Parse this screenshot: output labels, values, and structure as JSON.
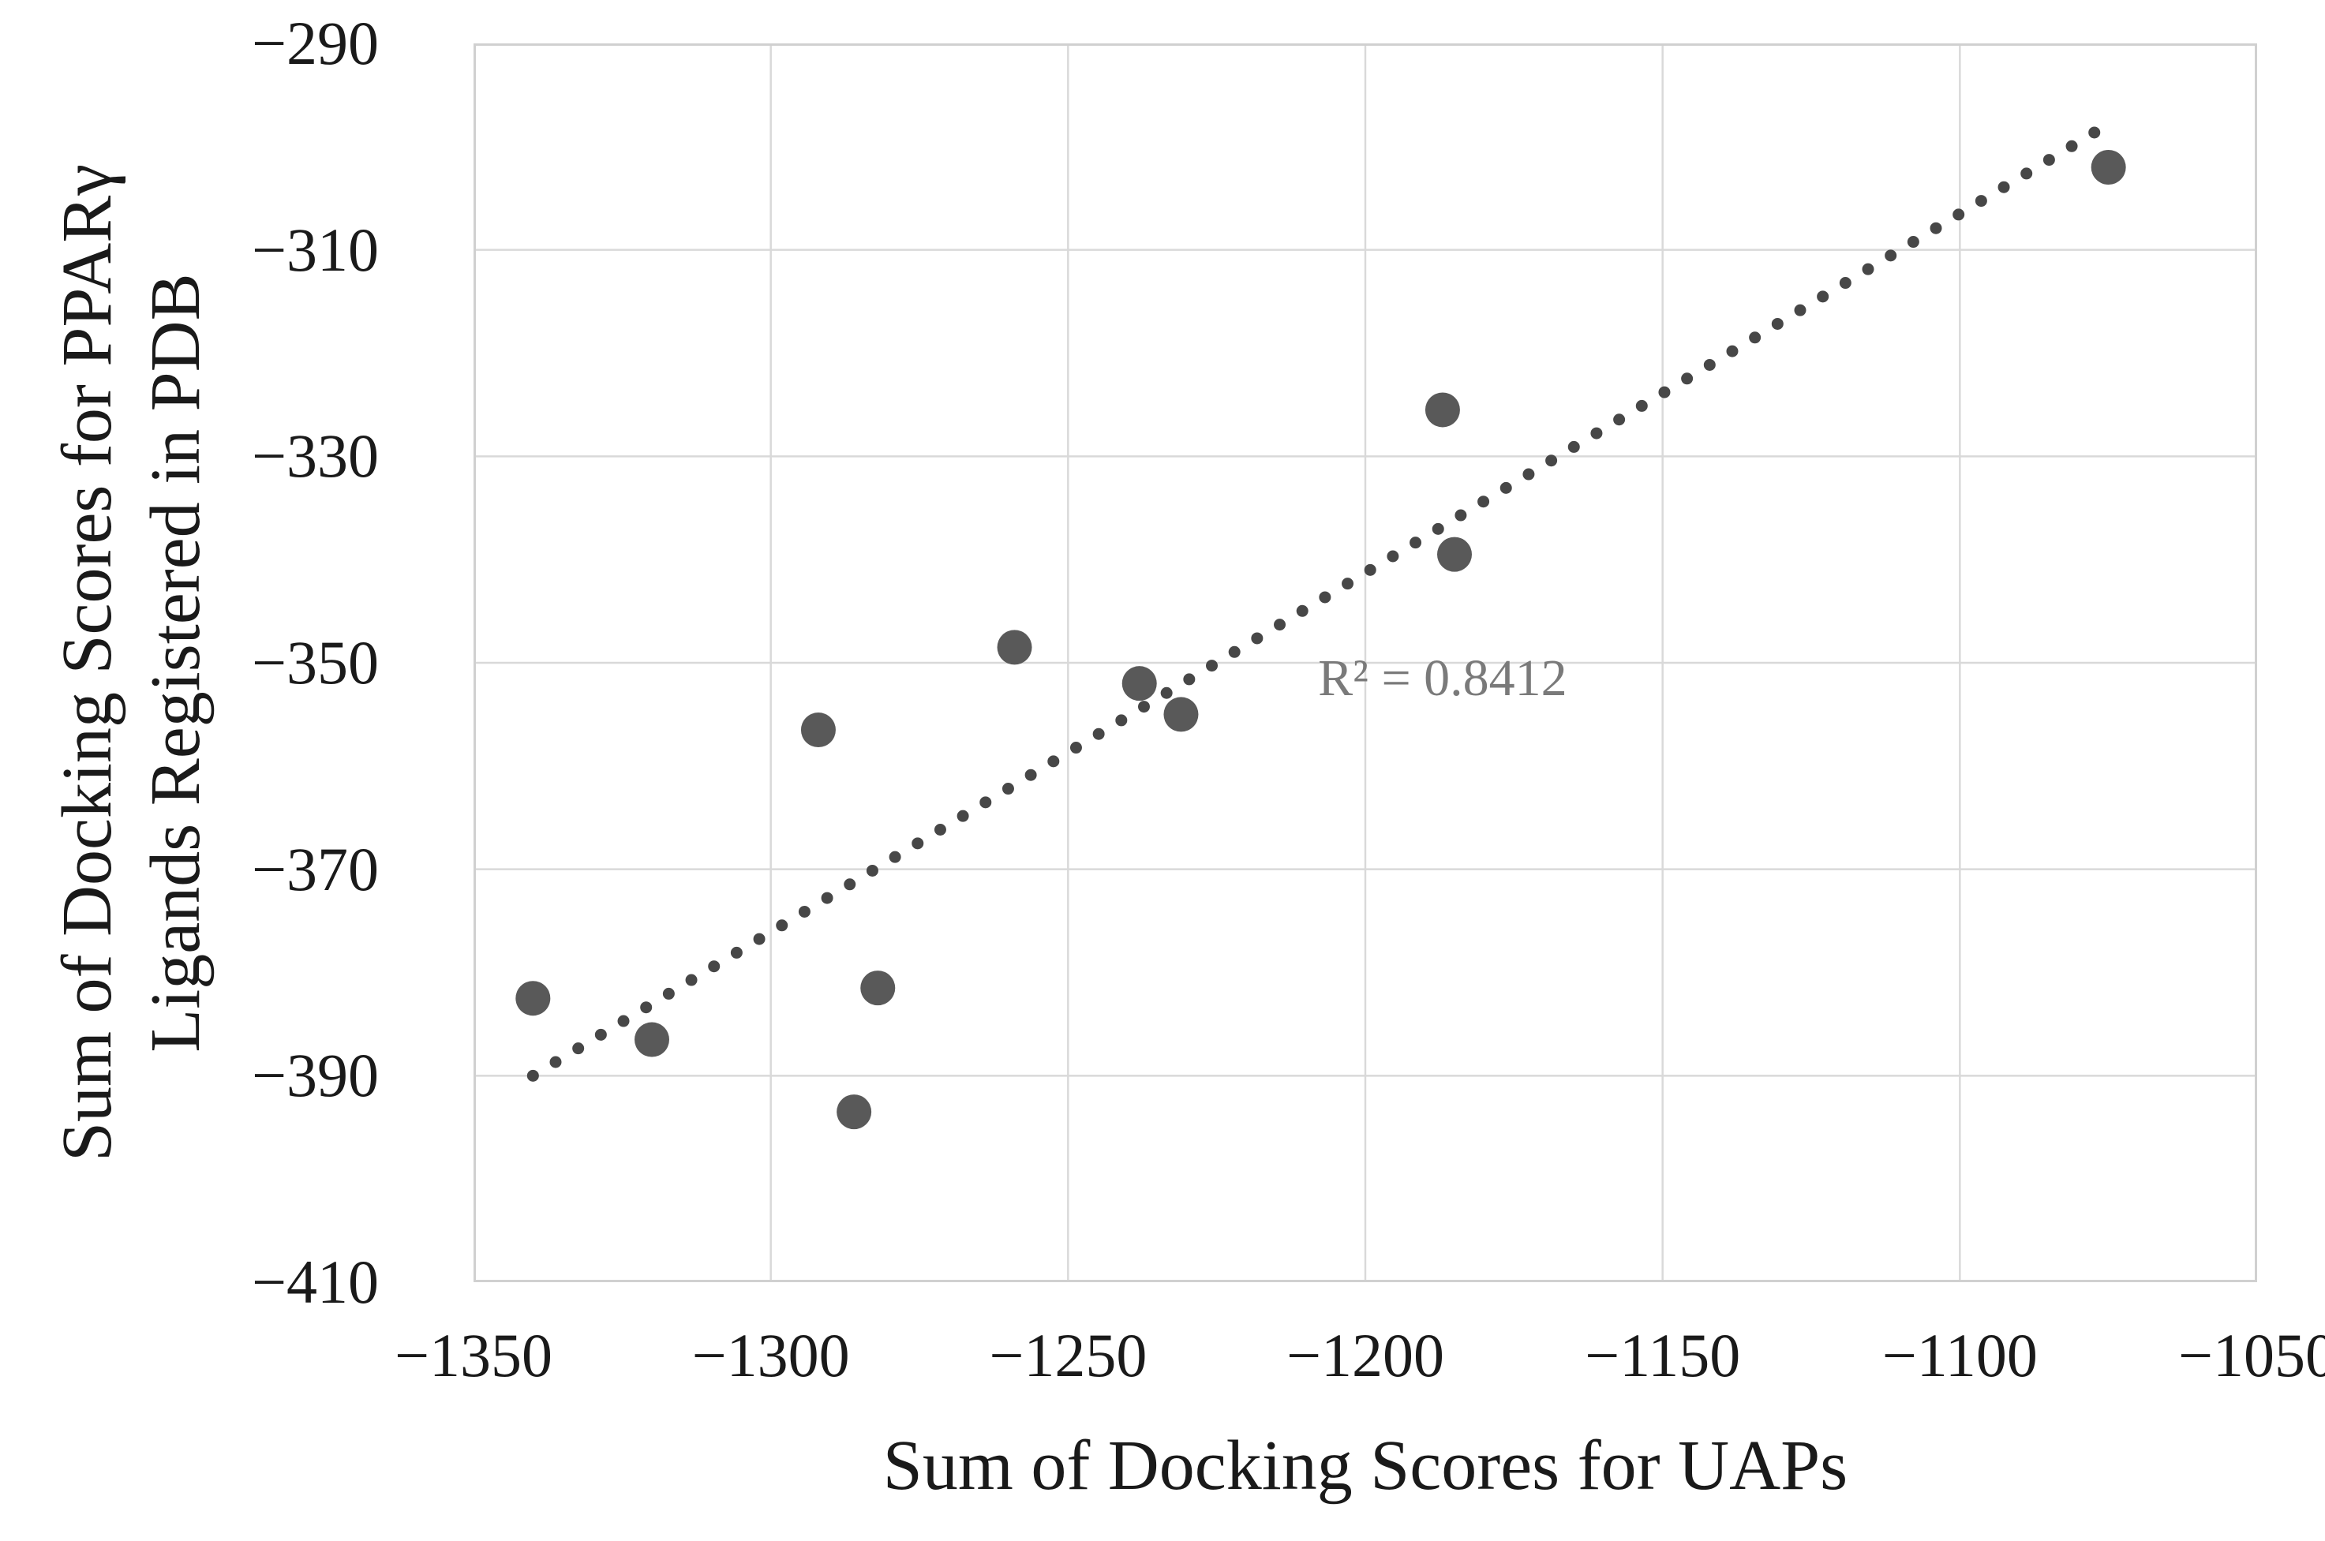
{
  "figure": {
    "background": "#ffffff",
    "text_color": "#1a1a1a"
  },
  "chart_data": {
    "type": "scatter",
    "title": "",
    "xlabel": "Sum of Docking Scores for UAPs",
    "ylabel_line1": "Sum of Docking Scores for PPARγ",
    "ylabel_line2": "Ligands Registered in PDB",
    "xlim": [
      -1350,
      -1050
    ],
    "ylim": [
      -410,
      -290
    ],
    "grid": true,
    "legend_position": "none",
    "grid_color": "#d9d9d9",
    "border_color": "#d0d0d0",
    "x_ticks": [
      {
        "v": -1350,
        "label": "−1350"
      },
      {
        "v": -1300,
        "label": "−1300"
      },
      {
        "v": -1250,
        "label": "−1250"
      },
      {
        "v": -1200,
        "label": "−1200"
      },
      {
        "v": -1150,
        "label": "−1150"
      },
      {
        "v": -1100,
        "label": "−1100"
      },
      {
        "v": -1050,
        "label": "−1050"
      }
    ],
    "y_ticks": [
      {
        "v": -290,
        "label": "−290"
      },
      {
        "v": -310,
        "label": "−310"
      },
      {
        "v": -330,
        "label": "−330"
      },
      {
        "v": -350,
        "label": "−350"
      },
      {
        "v": -370,
        "label": "−370"
      },
      {
        "v": -390,
        "label": "−390"
      },
      {
        "v": -410,
        "label": "−410"
      }
    ],
    "series": [
      {
        "name": "docking-score-points",
        "marker": "circle",
        "marker_color": "#595959",
        "marker_radius_px": 22,
        "points": [
          [
            -1340,
            -382.5
          ],
          [
            -1320,
            -386.5
          ],
          [
            -1292,
            -356.5
          ],
          [
            -1286,
            -393.5
          ],
          [
            -1282,
            -381.5
          ],
          [
            -1259,
            -348.5
          ],
          [
            -1238,
            -352
          ],
          [
            -1231,
            -355
          ],
          [
            -1187,
            -325.5
          ],
          [
            -1185,
            -339.5
          ],
          [
            -1075,
            -302
          ]
        ]
      }
    ],
    "trendline": {
      "style": "dotted",
      "color": "#474747",
      "start": [
        -1340,
        -390
      ],
      "end": [
        -1077,
        -298.5
      ]
    },
    "annotation": {
      "text": "R² = 0.8412",
      "x": -1187,
      "y": -351.5,
      "color": "#7a7a7a"
    }
  }
}
